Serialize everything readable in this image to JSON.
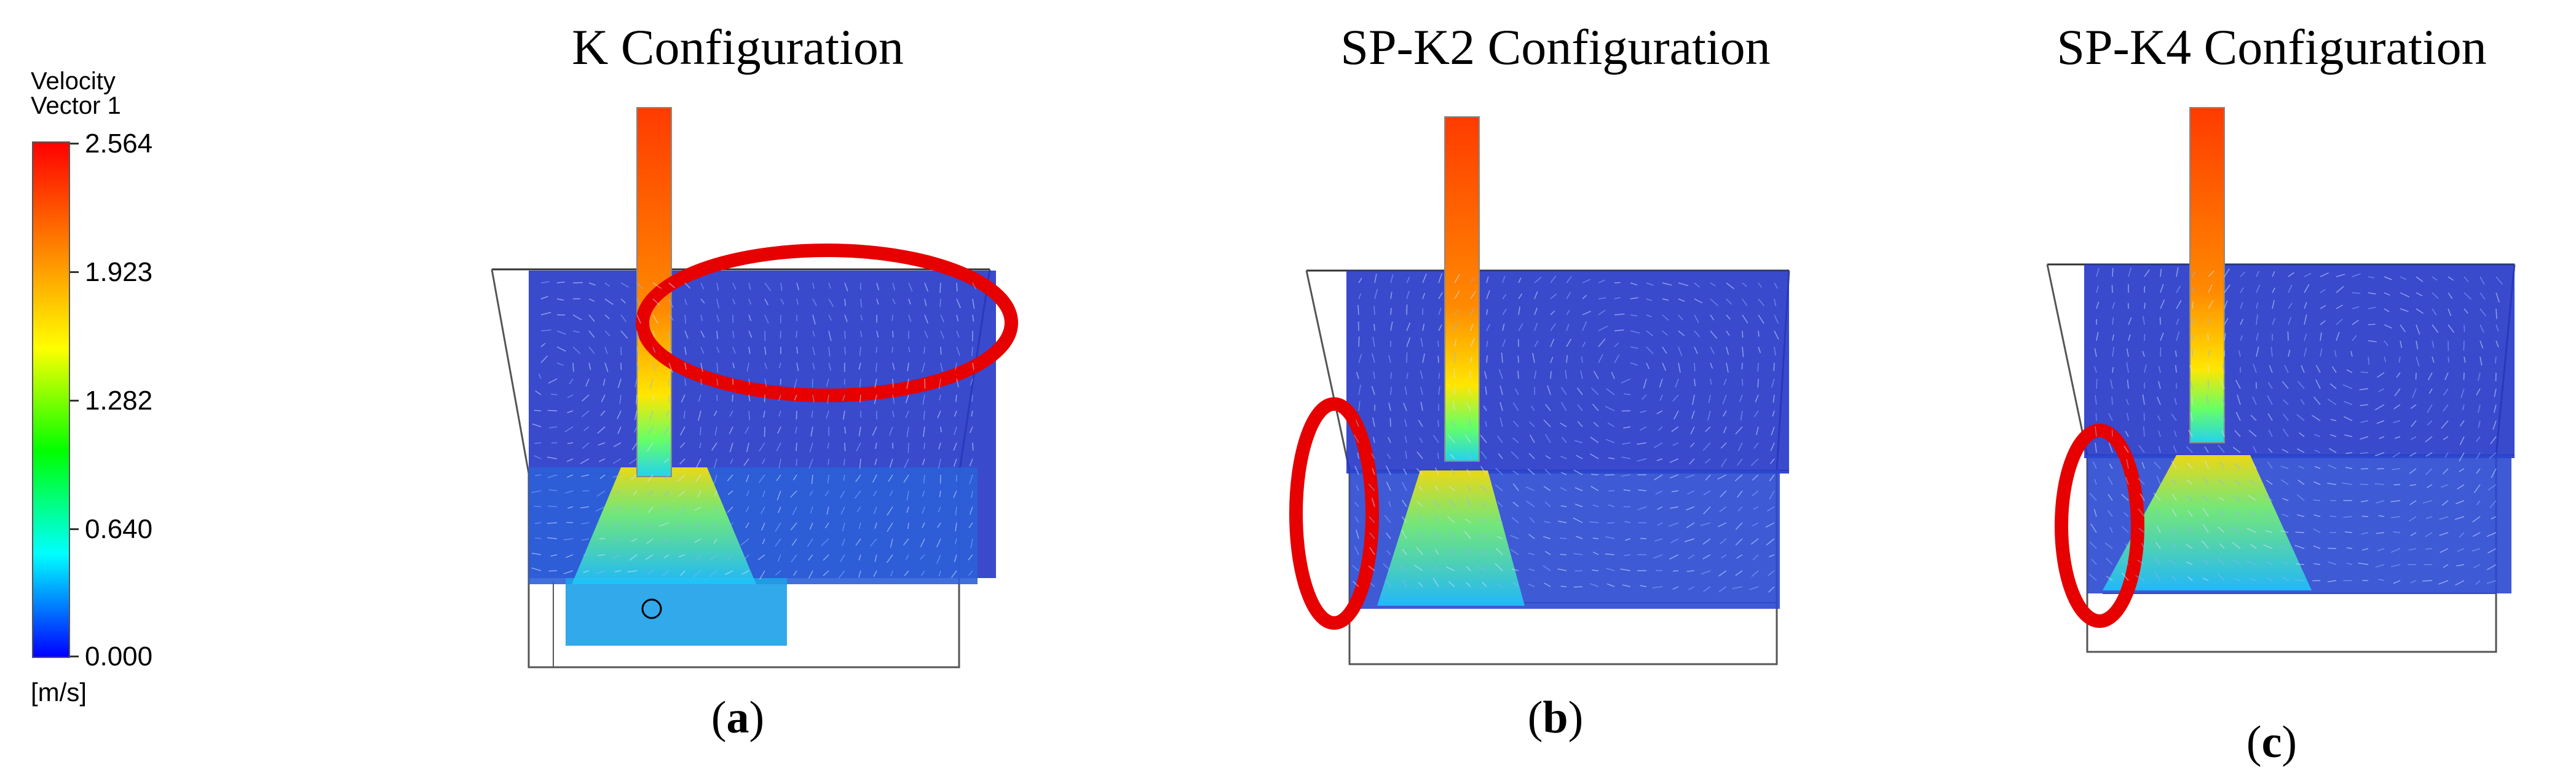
{
  "legend": {
    "title_line1": "Velocity",
    "title_line2": "Vector 1",
    "unit": "[m/s]",
    "ticks": [
      "2.564",
      "1.923",
      "1.282",
      "0.640",
      "0.000"
    ],
    "colormap": [
      "#ff0000",
      "#ff8000",
      "#ffff00",
      "#00ff00",
      "#00ffff",
      "#0000ff"
    ]
  },
  "panels": [
    {
      "title": "K Configuration",
      "caption_open": "(",
      "caption_letter": "a",
      "caption_close": ")"
    },
    {
      "title": "SP-K2 Configuration",
      "caption_open": "(",
      "caption_letter": "b",
      "caption_close": ")"
    },
    {
      "title": "SP-K4 Configuration",
      "caption_open": "(",
      "caption_letter": "c",
      "caption_close": ")"
    }
  ],
  "highlight_color": "#e60000",
  "vector_color": "#1a1aa8"
}
